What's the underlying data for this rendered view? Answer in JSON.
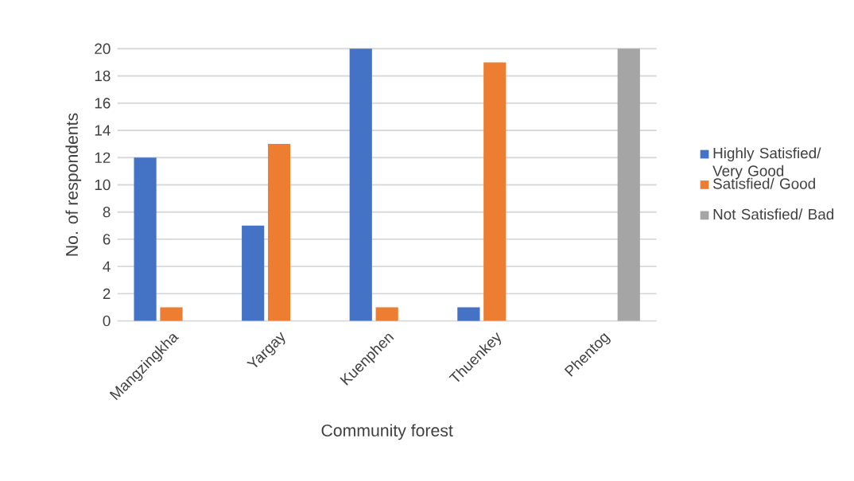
{
  "chart_data": {
    "type": "bar",
    "xlabel": "Community forest",
    "ylabel": "No. of respondents",
    "categories": [
      "Mangzingkha",
      "Yargay",
      "Kuenphen",
      "Thuenkey",
      "Phentog"
    ],
    "series": [
      {
        "name": "Highly Satisfied/ Very Good",
        "color": "#4472c4",
        "values": [
          12,
          7,
          20,
          1,
          0
        ]
      },
      {
        "name": "Satisfied/ Good",
        "color": "#ed7d31",
        "values": [
          1,
          13,
          1,
          19,
          0
        ]
      },
      {
        "name": "Not Satisfied/ Bad",
        "color": "#a5a5a5",
        "values": [
          0,
          0,
          0,
          0,
          20
        ]
      }
    ],
    "ylim": [
      0,
      20
    ],
    "yticks": [
      0,
      2,
      4,
      6,
      8,
      10,
      12,
      14,
      16,
      18,
      20
    ],
    "grid": "y",
    "legend": "right"
  }
}
